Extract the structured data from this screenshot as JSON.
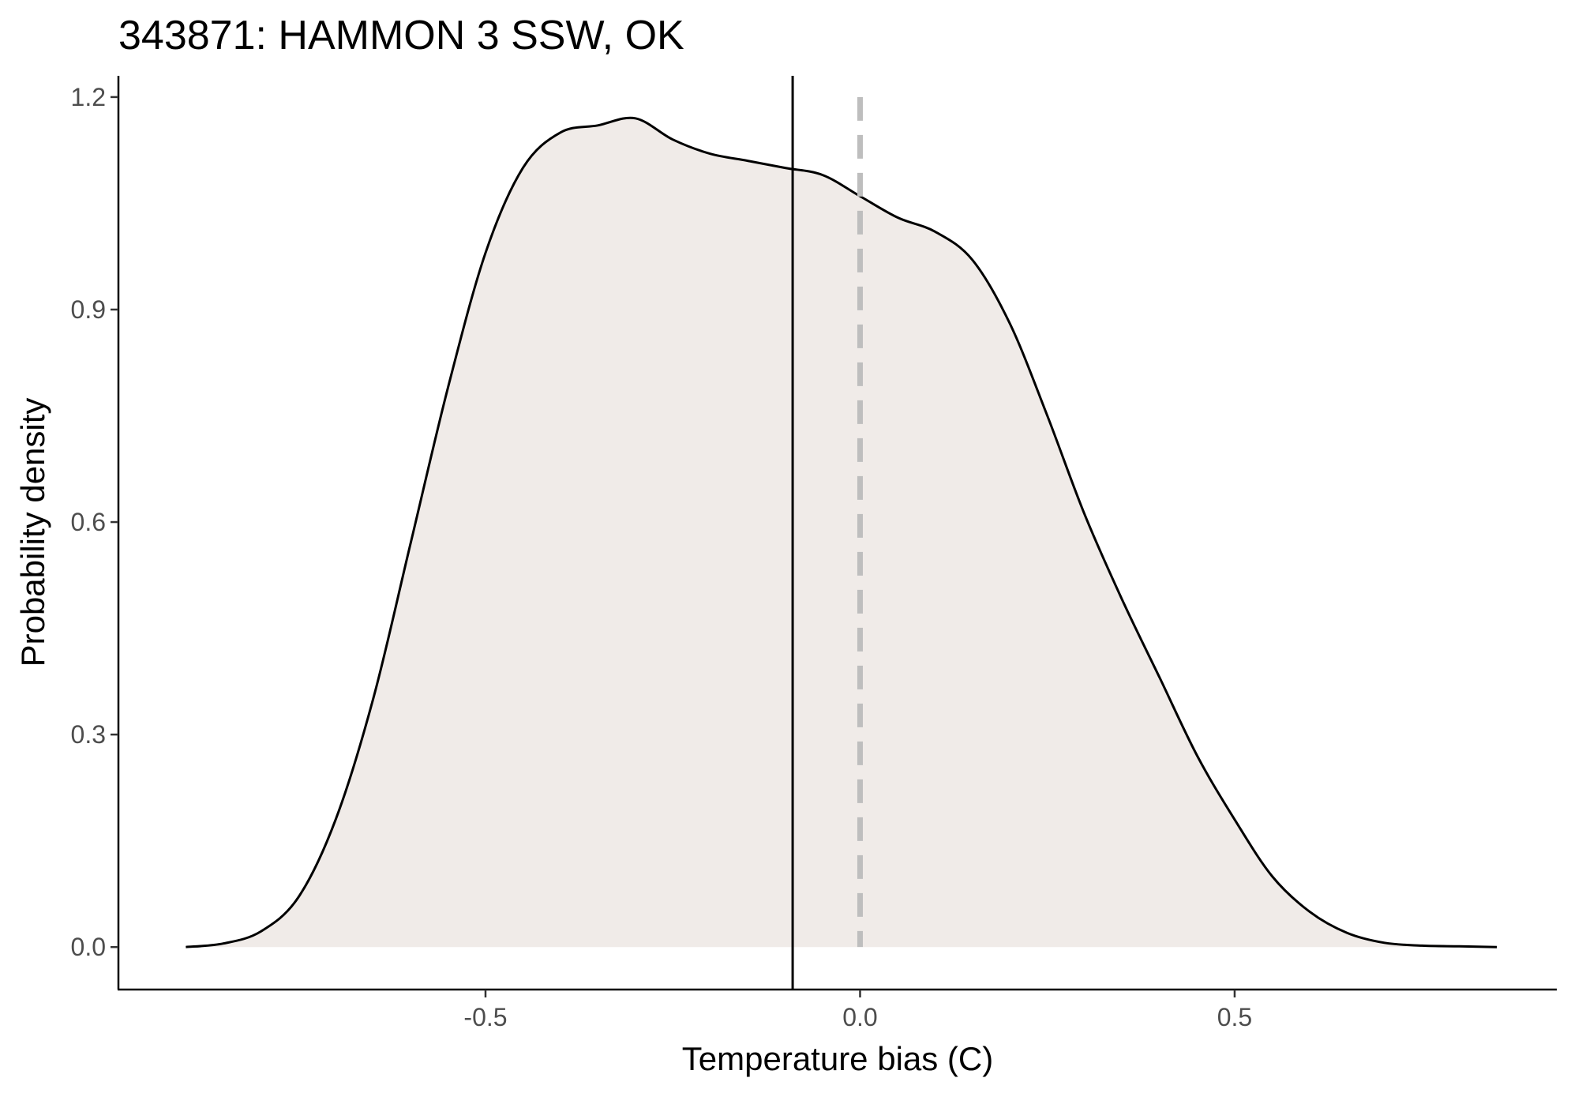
{
  "chart_data": {
    "type": "area",
    "title": "343871: HAMMON 3 SSW, OK",
    "xlabel": "Temperature bias (C)",
    "ylabel": "Probability density",
    "xlim": [
      -0.99,
      0.93
    ],
    "ylim": [
      -0.06,
      1.23
    ],
    "x_ticks": [
      -0.5,
      0.0,
      0.5
    ],
    "x_tick_labels": [
      "-0.5",
      "0.0",
      "0.5"
    ],
    "y_ticks": [
      0.0,
      0.3,
      0.6,
      0.9,
      1.2
    ],
    "y_tick_labels": [
      "0.0",
      "0.3",
      "0.6",
      "0.9",
      "1.2"
    ],
    "grid": false,
    "fill_color": "#f0ebe8",
    "line_color": "#000000",
    "density": {
      "x": [
        -0.9,
        -0.85,
        -0.8,
        -0.75,
        -0.7,
        -0.65,
        -0.6,
        -0.55,
        -0.5,
        -0.45,
        -0.4,
        -0.35,
        -0.3,
        -0.25,
        -0.2,
        -0.15,
        -0.1,
        -0.05,
        0.0,
        0.05,
        0.1,
        0.15,
        0.2,
        0.25,
        0.3,
        0.35,
        0.4,
        0.45,
        0.5,
        0.55,
        0.6,
        0.65,
        0.7,
        0.75,
        0.8,
        0.85
      ],
      "y": [
        0.0,
        0.005,
        0.022,
        0.07,
        0.18,
        0.35,
        0.57,
        0.79,
        0.98,
        1.1,
        1.15,
        1.16,
        1.17,
        1.14,
        1.12,
        1.11,
        1.1,
        1.09,
        1.06,
        1.03,
        1.01,
        0.97,
        0.88,
        0.75,
        0.61,
        0.49,
        0.38,
        0.27,
        0.18,
        0.1,
        0.05,
        0.02,
        0.006,
        0.002,
        0.001,
        0.0
      ]
    },
    "reference_lines": [
      {
        "x": -0.09,
        "style": "solid",
        "color": "#000000"
      },
      {
        "x": 0.0,
        "style": "dashed",
        "color": "#bebebe"
      }
    ]
  }
}
